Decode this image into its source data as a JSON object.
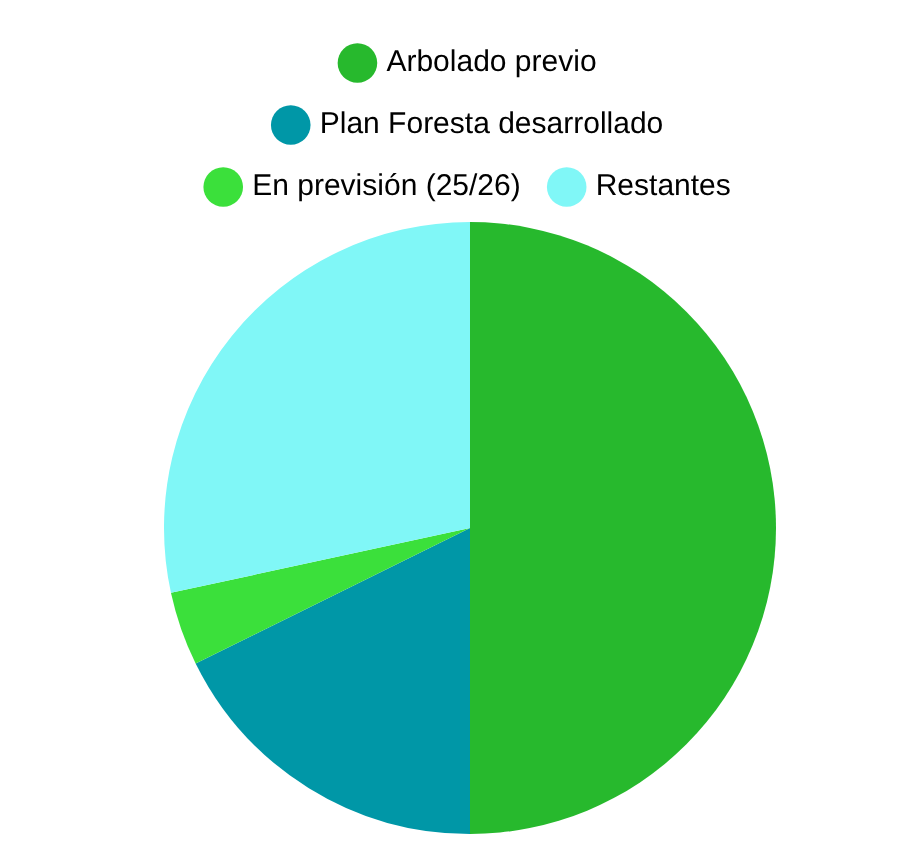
{
  "chart_data": {
    "type": "pie",
    "categories": [
      "Arbolado previo",
      "Plan Foresta desarrollado",
      "En previsión (25/26)",
      "Restantes"
    ],
    "values": [
      50,
      17.7,
      3.9,
      28.4
    ],
    "colors": [
      "#27b92d",
      "#0097a7",
      "#3be03b",
      "#80f7f7"
    ],
    "legend": "top"
  }
}
